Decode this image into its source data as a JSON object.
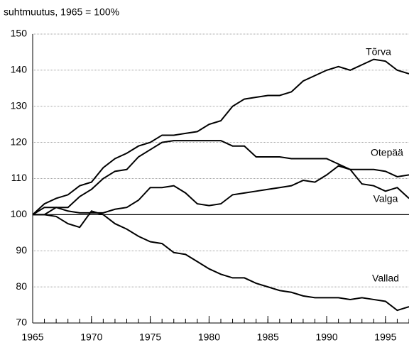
{
  "chart_data": {
    "type": "line",
    "y_label": "suhtmuutus, 1965 = 100%",
    "x": [
      1965,
      1966,
      1967,
      1968,
      1969,
      1970,
      1971,
      1972,
      1973,
      1974,
      1975,
      1976,
      1977,
      1978,
      1979,
      1980,
      1981,
      1982,
      1983,
      1984,
      1985,
      1986,
      1987,
      1988,
      1989,
      1990,
      1991,
      1992,
      1993,
      1994,
      1995,
      1996,
      1997
    ],
    "series": [
      {
        "name": "Tõrva",
        "color": "#000000",
        "values": [
          100,
          103,
          104.5,
          105.5,
          108,
          109,
          113,
          115.5,
          117,
          119,
          120,
          122,
          122,
          122.5,
          123,
          125,
          126,
          130,
          132,
          132.5,
          133,
          133,
          134,
          137,
          138.5,
          140,
          141,
          140,
          141.5,
          143,
          142.5,
          140,
          139
        ]
      },
      {
        "name": "Otepää",
        "color": "#000000",
        "values": [
          100,
          102,
          102,
          102,
          105,
          107,
          110,
          112,
          112.5,
          116,
          118,
          120,
          120.5,
          120.5,
          120.5,
          120.5,
          120.5,
          119,
          119,
          116,
          116,
          116,
          115.5,
          115.5,
          115.5,
          115.5,
          114,
          112.5,
          112.5,
          112.5,
          112,
          110.5,
          111
        ]
      },
      {
        "name": "Valga",
        "color": "#000000",
        "values": [
          100,
          100,
          102,
          101,
          100.5,
          100.5,
          100.5,
          101.5,
          102,
          104,
          107.5,
          107.5,
          108,
          106,
          103,
          102.5,
          103,
          105.5,
          106,
          106.5,
          107,
          107.5,
          108,
          109.5,
          109,
          111,
          113.5,
          112.5,
          108.5,
          108,
          106.5,
          107.5,
          104.5
        ]
      },
      {
        "name": "Vallad",
        "color": "#000000",
        "values": [
          100,
          100,
          99.5,
          97.5,
          96.5,
          101,
          100,
          97.5,
          96,
          94,
          92.5,
          92,
          89.5,
          89,
          87,
          85,
          83.5,
          82.5,
          82.5,
          81,
          80,
          79,
          78.5,
          77.5,
          77,
          77,
          77,
          76.5,
          77,
          76.5,
          76,
          73.5,
          74.5
        ]
      }
    ],
    "xlim": [
      1965,
      1997
    ],
    "xticks": [
      1965,
      1970,
      1975,
      1980,
      1985,
      1990,
      1995
    ],
    "ylim": [
      70,
      150
    ],
    "yticks": [
      70,
      80,
      90,
      100,
      110,
      120,
      130,
      140,
      150
    ],
    "baseline": 100,
    "grid": true
  }
}
